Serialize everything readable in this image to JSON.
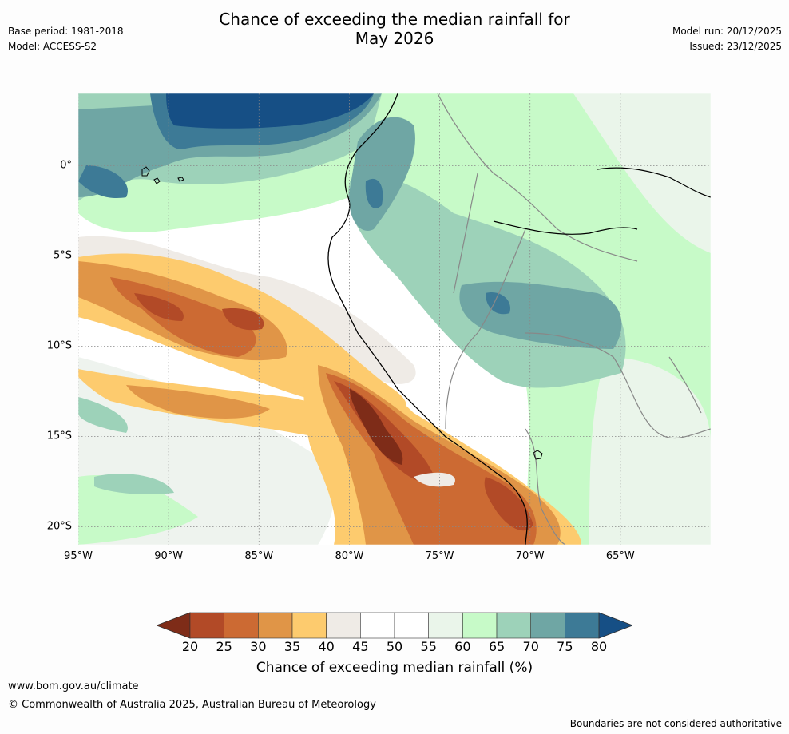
{
  "header": {
    "title_line1": "Chance of exceeding the median rainfall for",
    "title_line2": "May 2026",
    "base_period": "Base period: 1981-2018",
    "model": "Model: ACCESS-S2",
    "model_run": "Model run: 20/12/2025",
    "issued": "Issued: 23/12/2025"
  },
  "map": {
    "lat_labels": [
      "0°",
      "5°S",
      "10°S",
      "15°S",
      "20°S"
    ],
    "lon_labels": [
      "95°W",
      "90°W",
      "85°W",
      "80°W",
      "75°W",
      "70°W",
      "65°W"
    ],
    "lat_values": [
      0,
      -5,
      -10,
      -15,
      -20
    ],
    "lon_values": [
      -95,
      -90,
      -85,
      -80,
      -75,
      -70,
      -65
    ],
    "extent": {
      "lon_min": -95,
      "lon_max": -60,
      "lat_min": -21,
      "lat_max": 4
    },
    "regions": [
      {
        "name": "north-eastern-pacific-wet",
        "lon": [
          -91,
          -80
        ],
        "lat": [
          2,
          4
        ],
        "category": "75-80+"
      },
      {
        "name": "equatorial-pacific-wet",
        "lon": [
          -95,
          -86
        ],
        "lat": [
          -2,
          3
        ],
        "category": "65-75"
      },
      {
        "name": "ecuador-colombia-coast",
        "lon": [
          -81,
          -77
        ],
        "lat": [
          -3,
          3
        ],
        "category": "60-75"
      },
      {
        "name": "western-amazon",
        "lon": [
          -77,
          -63
        ],
        "lat": [
          -13,
          -1
        ],
        "category": "60-75"
      },
      {
        "name": "eastern-amazon",
        "lon": [
          -65,
          -60
        ],
        "lat": [
          -20,
          -1
        ],
        "category": "55-65"
      },
      {
        "name": "peru-offshore-dry-band",
        "lon": [
          -95,
          -79
        ],
        "lat": [
          -11,
          -5
        ],
        "category": "25-40"
      },
      {
        "name": "peru-coast-dry-core",
        "lon": [
          -81,
          -69
        ],
        "lat": [
          -19,
          -11
        ],
        "category": "20-35"
      },
      {
        "name": "southeast-pacific",
        "lon": [
          -95,
          -80
        ],
        "lat": [
          -21,
          -14
        ],
        "category": "45-60"
      }
    ]
  },
  "colorbar": {
    "ticks": [
      "20",
      "25",
      "30",
      "35",
      "40",
      "45",
      "50",
      "55",
      "60",
      "65",
      "70",
      "75",
      "80"
    ],
    "colors": [
      "#7e2c18",
      "#b24a27",
      "#cc6a33",
      "#e09547",
      "#fdcb6e",
      "#efebe6",
      "#ffffff",
      "#ffffff",
      "#eaf5ea",
      "#c7fac8",
      "#9dd2b9",
      "#6fa6a4",
      "#3d7a96",
      "#164f85"
    ],
    "label": "Chance of exceeding median rainfall (%)"
  },
  "footer": {
    "website": "www.bom.gov.au/climate",
    "copyright": "© Commonwealth of Australia 2025, Australian Bureau of Meteorology",
    "disclaimer": "Boundaries are not considered authoritative"
  }
}
